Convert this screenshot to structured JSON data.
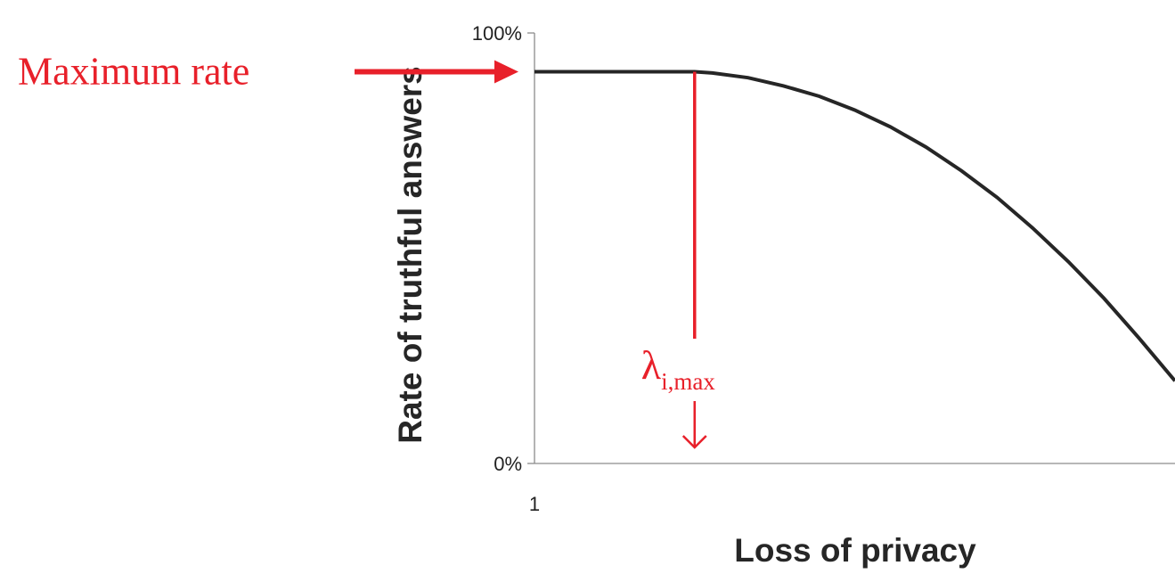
{
  "chart_data": {
    "type": "line",
    "xlabel": "Loss of privacy",
    "ylabel": "Rate of truthful answers",
    "x_tick_labels": [
      "1"
    ],
    "y_tick_labels": [
      "0%",
      "100%"
    ],
    "ylim": [
      0,
      100
    ],
    "xlim": [
      1,
      10
    ],
    "grid": false,
    "legend": "none",
    "series": [
      {
        "x": [
          1,
          2,
          3,
          3.25,
          3.5,
          4,
          4.5,
          5,
          5.5,
          6,
          6.5,
          7,
          7.5,
          8,
          8.5,
          9,
          9.5,
          10
        ],
        "values": [
          91,
          91,
          91,
          91,
          90.7,
          89.6,
          87.7,
          85.3,
          82.1,
          78.2,
          73.5,
          68,
          61.8,
          54.7,
          46.9,
          38.4,
          29,
          19.2
        ]
      }
    ],
    "annotations": {
      "max_rate_label": "Maximum rate",
      "max_rate_value": 91,
      "lambda_symbol": "λ",
      "lambda_subscript": "i,max",
      "lambda_x": 3.25
    },
    "colors": {
      "curve": "#262626",
      "annotation": "#e8202a",
      "axis": "#8c8c8c"
    }
  }
}
